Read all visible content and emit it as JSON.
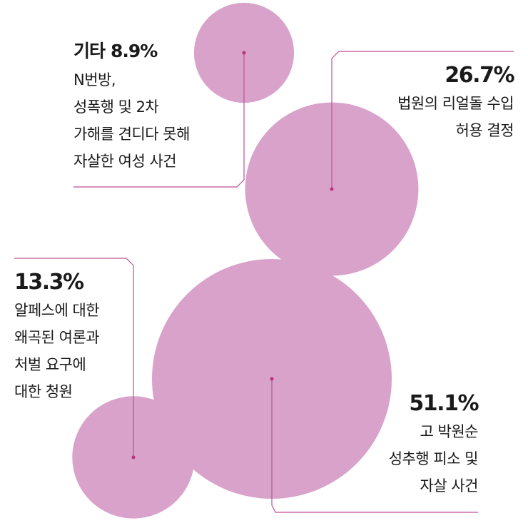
{
  "colors": {
    "bubble": "#d8a2ca",
    "line": "#c24f97",
    "dot": "#b8347e"
  },
  "chart_data": {
    "type": "bubble",
    "unit": "%",
    "items": [
      {
        "value": 51.1,
        "label": "51.1%",
        "lines": [
          "고 박원순",
          "성추행 피소 및",
          "자살 사건"
        ]
      },
      {
        "value": 26.7,
        "label": "26.7%",
        "lines": [
          "법원의 리얼돌 수입",
          "허용 결정"
        ]
      },
      {
        "value": 13.3,
        "label": "13.3%",
        "lines": [
          "알페스에 대한",
          "왜곡된 여론과",
          "처벌 요구에",
          "대한 청원"
        ]
      },
      {
        "value": 8.9,
        "name": "기타",
        "label": "8.9%",
        "lines": [
          "N번방,",
          "성폭행 및 2차",
          "가해를 견디다 못해",
          "자살한 여성 사건"
        ]
      }
    ]
  }
}
